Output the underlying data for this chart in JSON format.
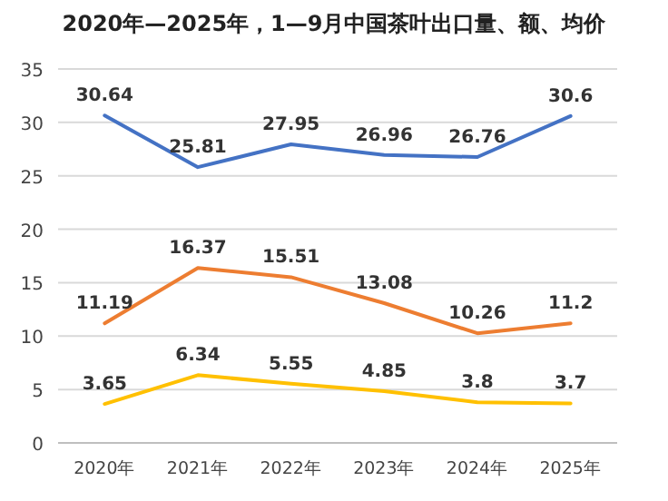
{
  "chart_data": {
    "type": "line",
    "title": "2020年—2025年，1—9月中国茶叶出口量、额、均价",
    "categories": [
      "2020年",
      "2021年",
      "2022年",
      "2023年",
      "2024年",
      "2025年"
    ],
    "series": [
      {
        "color": "#4472c4",
        "values": [
          30.64,
          25.81,
          27.95,
          26.96,
          26.76,
          30.6
        ]
      },
      {
        "color": "#ed7d31",
        "values": [
          11.19,
          16.37,
          15.51,
          13.08,
          10.26,
          11.2
        ]
      },
      {
        "color": "#ffc000",
        "values": [
          3.65,
          6.34,
          5.55,
          4.85,
          3.8,
          3.7
        ]
      }
    ],
    "ylim": [
      0,
      35
    ],
    "yticks": [
      0,
      5,
      10,
      15,
      20,
      25,
      30,
      35
    ],
    "grid": "y",
    "data_labels": true,
    "marker": "none"
  }
}
